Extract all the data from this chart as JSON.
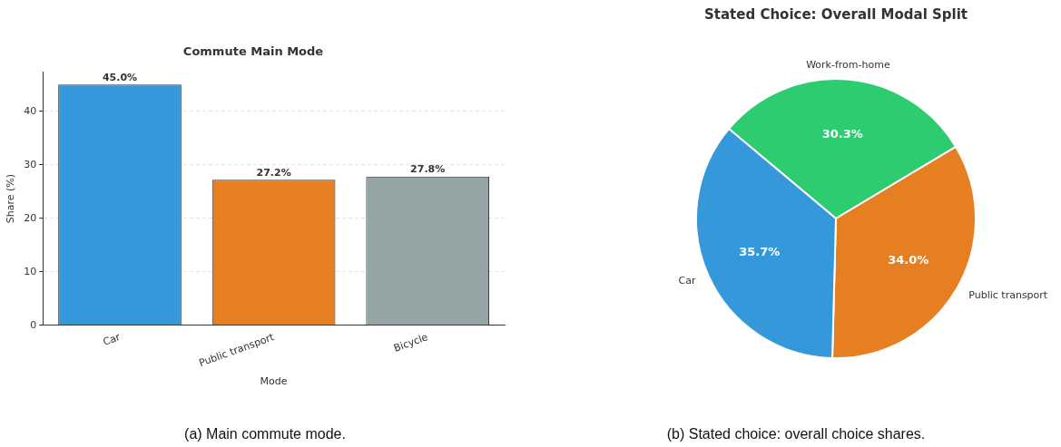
{
  "chart_data": [
    {
      "type": "bar",
      "title": "Commute Main Mode",
      "xlabel": "Mode",
      "ylabel": "Share (%)",
      "categories": [
        "Car",
        "Public transport",
        "Bicycle"
      ],
      "values": [
        45.0,
        27.2,
        27.8
      ],
      "colors": [
        "#3498db",
        "#e67e22",
        "#95a5a6"
      ],
      "ylim": [
        0,
        47.3
      ],
      "yticks": [
        0,
        10,
        20,
        30,
        40
      ],
      "grid": "y",
      "legend": false,
      "value_labels": [
        "45.0%",
        "27.2%",
        "27.8%"
      ],
      "annotations": [
        "(a) Main commute mode."
      ]
    },
    {
      "type": "pie",
      "title": "Stated Choice: Overall Modal Split",
      "categories": [
        "Work-from-home",
        "Public transport",
        "Car"
      ],
      "values": [
        30.3,
        34.0,
        35.7
      ],
      "colors": [
        "#2ecc71",
        "#e67e22",
        "#3498db"
      ],
      "legend": false,
      "value_labels": [
        "30.3%",
        "34.0%",
        "35.7%"
      ],
      "annotations": [
        "(b) Stated choice: overall choice shares."
      ]
    }
  ]
}
